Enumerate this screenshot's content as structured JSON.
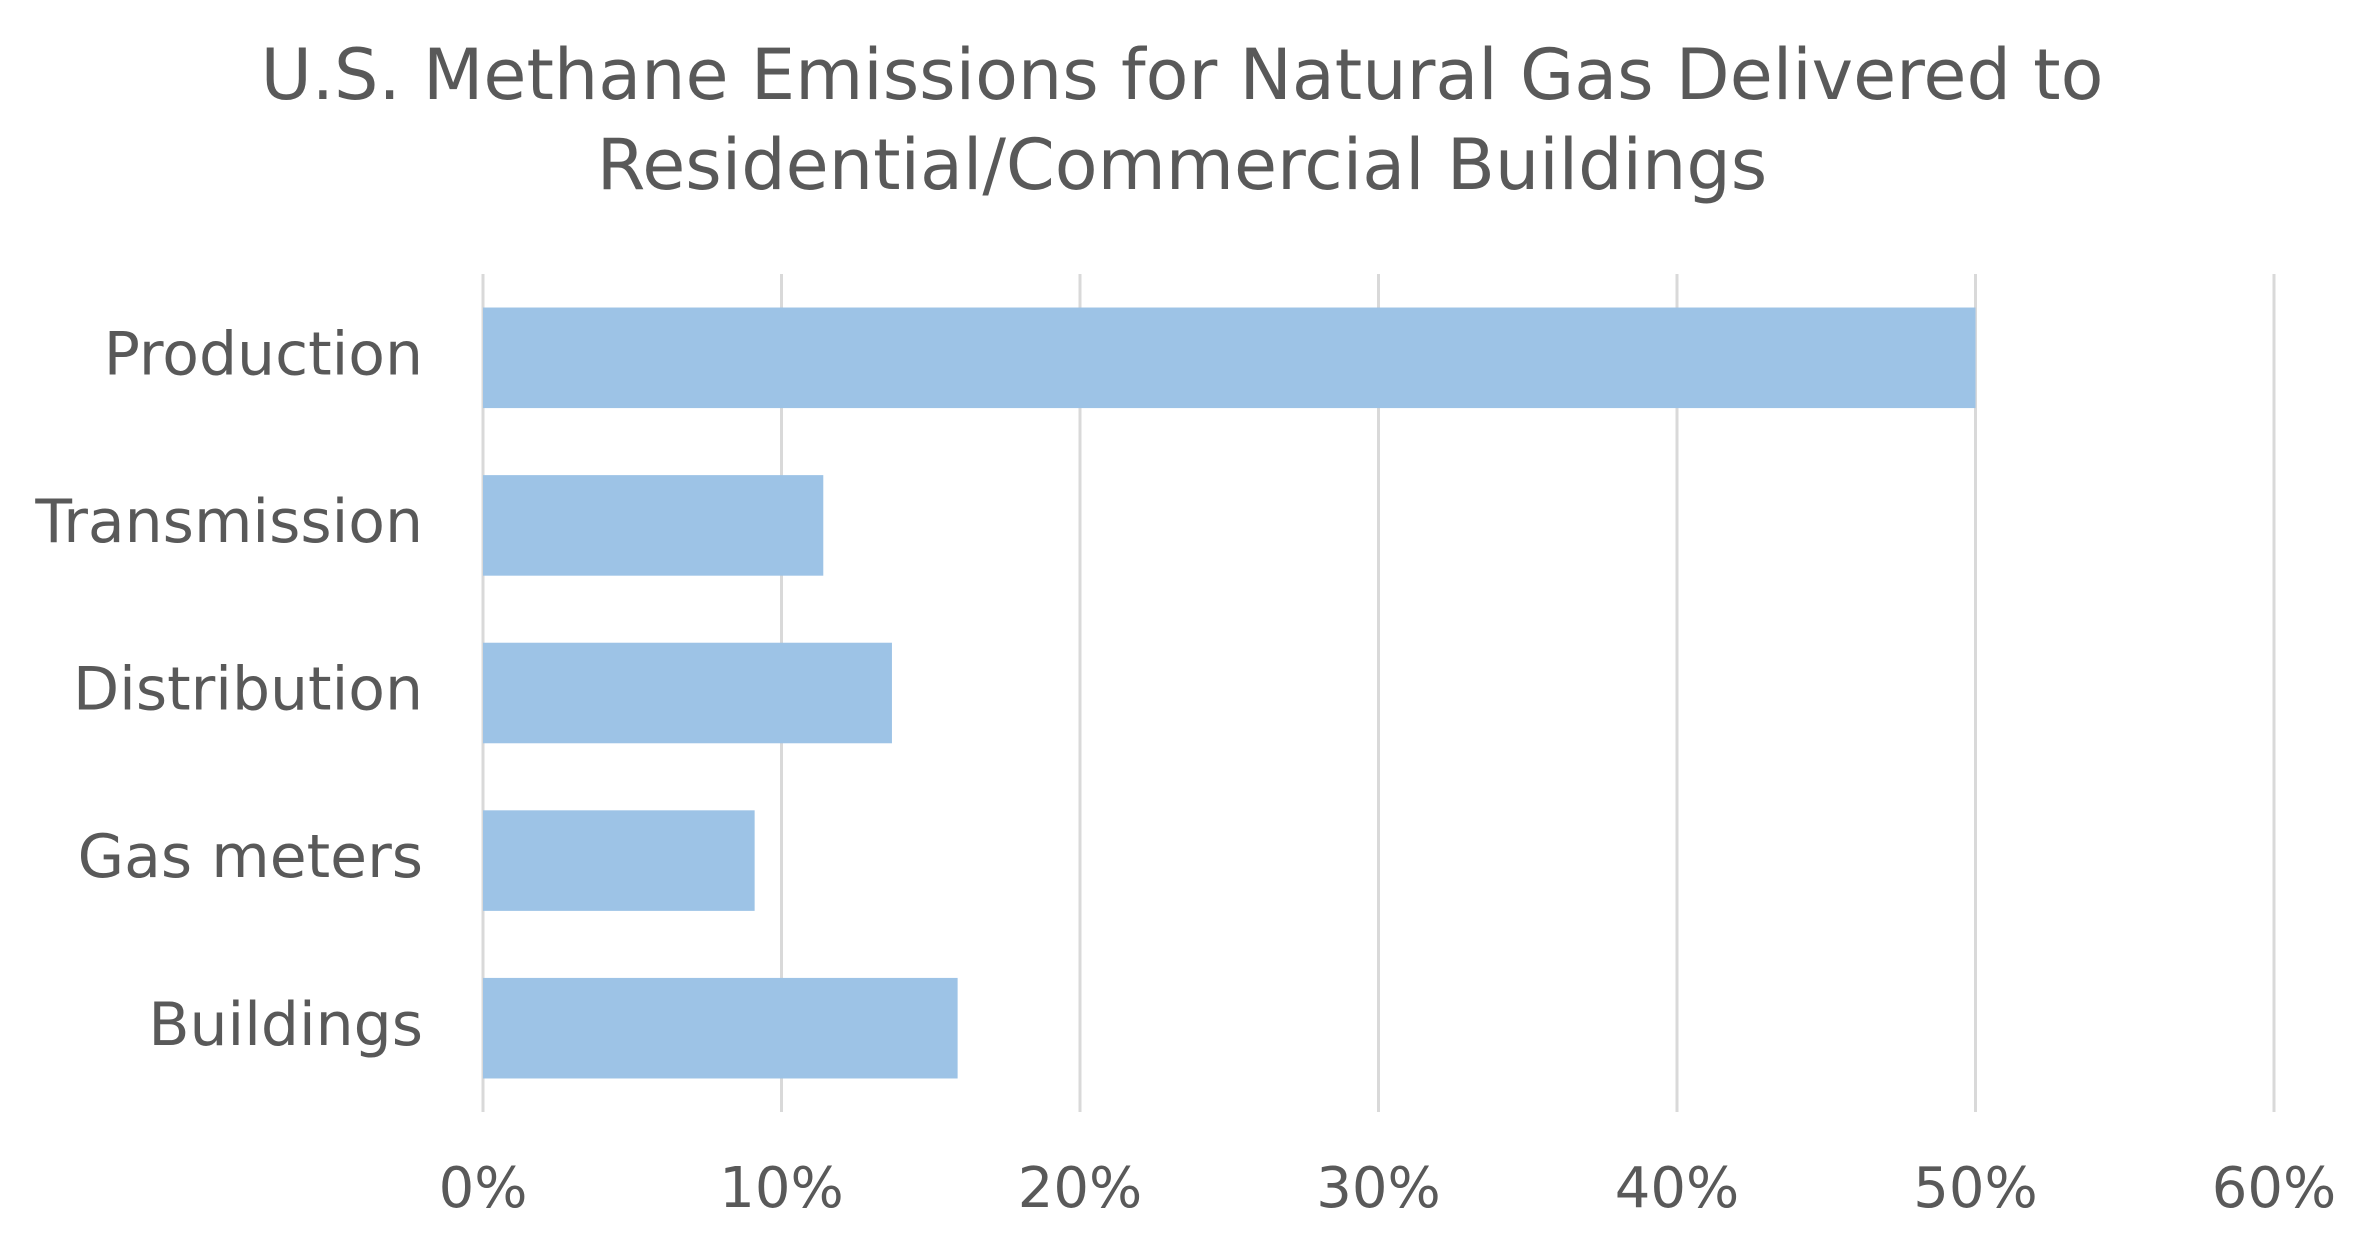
{
  "chart_data": {
    "type": "bar",
    "orientation": "horizontal",
    "title": "U.S. Methane Emissions for Natural Gas Delivered to Residential/Commercial Buildings",
    "categories": [
      "Production",
      "Transmission",
      "Distribution",
      "Gas meters",
      "Buildings"
    ],
    "values": [
      50,
      11.4,
      13.7,
      9.1,
      15.9
    ],
    "color": "#9dc3e6",
    "xlim": [
      0,
      60
    ],
    "xticks": [
      {
        "value": 0,
        "label": "0%"
      },
      {
        "value": 10,
        "label": "10%"
      },
      {
        "value": 20,
        "label": "20%"
      },
      {
        "value": 30,
        "label": "30%"
      },
      {
        "value": 40,
        "label": "40%"
      },
      {
        "value": 50,
        "label": "50%"
      },
      {
        "value": 60,
        "label": "60%"
      }
    ],
    "grid": true
  }
}
